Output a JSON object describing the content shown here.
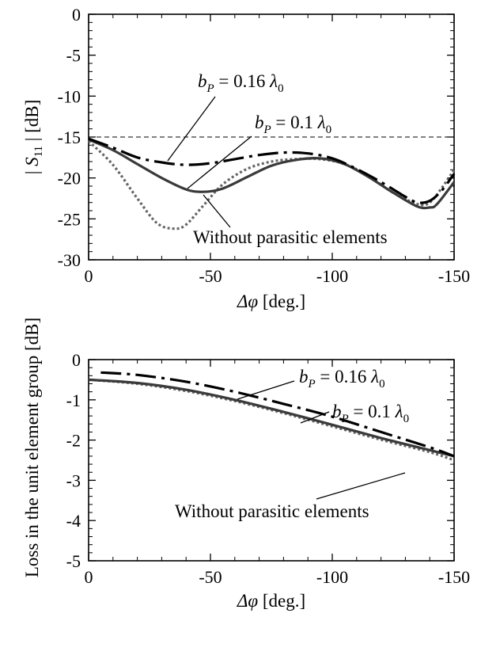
{
  "chart_data": [
    {
      "type": "line",
      "xlabel_symbol": "Δφ",
      "xlabel_unit": " [deg.]",
      "ylabel_pre": "| ",
      "ylabel_sym": "S",
      "ylabel_sub": "11",
      "ylabel_post": " | [dB]",
      "xlim": [
        0,
        -150
      ],
      "ylim": [
        -30,
        0
      ],
      "xticks": [
        0,
        -50,
        -100,
        -150
      ],
      "yticks": [
        0,
        -5,
        -10,
        -15,
        -20,
        -25,
        -30
      ],
      "xtick_labels": [
        "0",
        "-50",
        "-100",
        "-150"
      ],
      "ytick_labels": [
        "0",
        "-5",
        "-10",
        "-15",
        "-20",
        "-25",
        "-30"
      ],
      "reference_line": -15,
      "series": [
        {
          "name": "b_P = 0.16 λ0",
          "style": "dashdot",
          "x": [
            0,
            -10,
            -20,
            -30,
            -40,
            -50,
            -60,
            -70,
            -80,
            -90,
            -100,
            -110,
            -120,
            -130,
            -135,
            -140,
            -145,
            -150
          ],
          "y": [
            -15.2,
            -16.3,
            -17.5,
            -18.1,
            -18.4,
            -18.2,
            -17.7,
            -17.2,
            -16.9,
            -17.0,
            -17.6,
            -18.9,
            -20.5,
            -22.3,
            -23.0,
            -22.8,
            -21.5,
            -19.5
          ]
        },
        {
          "name": "b_P = 0.1 λ0",
          "style": "solid",
          "x": [
            0,
            -10,
            -20,
            -30,
            -40,
            -47,
            -55,
            -65,
            -75,
            -85,
            -95,
            -105,
            -115,
            -125,
            -135,
            -140,
            -143,
            -150
          ],
          "y": [
            -15.3,
            -16.6,
            -18.3,
            -20.0,
            -21.4,
            -21.7,
            -21.3,
            -19.9,
            -18.5,
            -17.8,
            -17.6,
            -18.3,
            -19.9,
            -21.8,
            -23.5,
            -23.6,
            -23.2,
            -20.5
          ]
        },
        {
          "name": "Without parasitic elements",
          "style": "dotted",
          "x": [
            0,
            -10,
            -20,
            -28,
            -35,
            -40,
            -47,
            -55,
            -65,
            -75,
            -85,
            -95,
            -105,
            -115,
            -125,
            -135,
            -140,
            -145,
            -150
          ],
          "y": [
            -15.5,
            -18.4,
            -22.5,
            -25.5,
            -26.2,
            -25.7,
            -23.4,
            -20.8,
            -18.9,
            -18.0,
            -17.7,
            -17.7,
            -18.3,
            -19.8,
            -21.8,
            -23.2,
            -23.0,
            -21.2,
            -19.0
          ]
        }
      ],
      "annotations": [
        {
          "pre": "b",
          "sub": "P",
          "mid": " = 0.16 ",
          "lam": "λ",
          "lamsub": "0"
        },
        {
          "pre": "b",
          "sub": "P",
          "mid": " = 0.1 ",
          "lam": "λ",
          "lamsub": "0"
        },
        {
          "text": "Without parasitic elements"
        }
      ]
    },
    {
      "type": "line",
      "xlabel_symbol": "Δφ",
      "xlabel_unit": " [deg.]",
      "ylabel": "Loss in the unit element group [dB]",
      "xlim": [
        0,
        -150
      ],
      "ylim": [
        -5,
        0
      ],
      "xticks": [
        0,
        -50,
        -100,
        -150
      ],
      "yticks": [
        0,
        -1,
        -2,
        -3,
        -4,
        -5
      ],
      "xtick_labels": [
        "0",
        "-50",
        "-100",
        "-150"
      ],
      "ytick_labels": [
        "0",
        "-1",
        "-2",
        "-3",
        "-4",
        "-5"
      ],
      "series": [
        {
          "name": "b_P = 0.16 λ0",
          "style": "dashdot",
          "x": [
            -5,
            -20,
            -40,
            -60,
            -80,
            -100,
            -120,
            -140,
            -150
          ],
          "y": [
            -0.32,
            -0.38,
            -0.55,
            -0.8,
            -1.1,
            -1.42,
            -1.8,
            -2.18,
            -2.4
          ]
        },
        {
          "name": "b_P = 0.1 λ0",
          "style": "solid",
          "x": [
            0,
            -20,
            -40,
            -60,
            -80,
            -100,
            -120,
            -140,
            -150
          ],
          "y": [
            -0.5,
            -0.58,
            -0.75,
            -1.0,
            -1.3,
            -1.62,
            -1.95,
            -2.25,
            -2.4
          ]
        },
        {
          "name": "Without parasitic elements",
          "style": "dotted",
          "x": [
            0,
            -20,
            -40,
            -60,
            -80,
            -100,
            -120,
            -140,
            -150
          ],
          "y": [
            -0.5,
            -0.6,
            -0.78,
            -1.03,
            -1.33,
            -1.66,
            -1.99,
            -2.3,
            -2.5
          ]
        }
      ],
      "annotations": [
        {
          "pre": "b",
          "sub": "P",
          "mid": " = 0.16 ",
          "lam": "λ",
          "lamsub": "0"
        },
        {
          "pre": "b",
          "sub": "P",
          "mid": " = 0.1 ",
          "lam": "λ",
          "lamsub": "0"
        },
        {
          "text": "Without parasitic elements"
        }
      ]
    }
  ]
}
